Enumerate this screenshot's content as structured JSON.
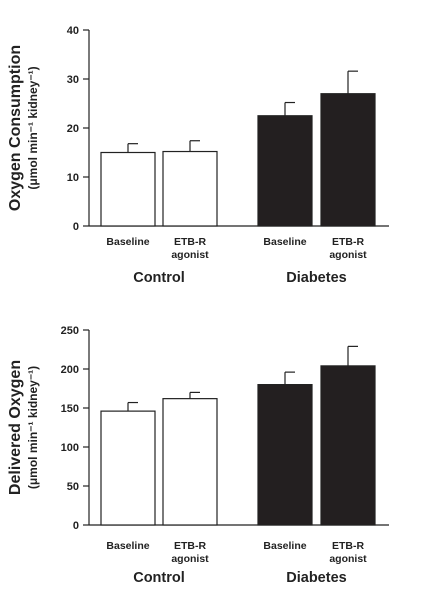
{
  "chart_data": [
    {
      "type": "bar",
      "groups": [
        {
          "name": "Control",
          "categories": [
            [
              "Baseline"
            ],
            [
              "ETB-R",
              "agonist"
            ]
          ]
        },
        {
          "name": "Diabetes",
          "categories": [
            [
              "Baseline"
            ],
            [
              "ETB-R",
              "agonist"
            ]
          ]
        }
      ],
      "categories": [
        "Control Baseline",
        "Control ETB-R agonist",
        "Diabetes Baseline",
        "Diabetes ETB-R agonist"
      ],
      "values": [
        15,
        15.2,
        22.5,
        27
      ],
      "errors": [
        1.8,
        2.2,
        2.7,
        4.6
      ],
      "fills": [
        "#ffffff",
        "#ffffff",
        "#231f20",
        "#231f20"
      ],
      "ylabel": "Oxygen Consumption",
      "ylabel2": "(μmol min⁻¹ kidney⁻¹)",
      "ylim": [
        0,
        40
      ],
      "yticks": [
        0,
        10,
        20,
        30,
        40
      ]
    },
    {
      "type": "bar",
      "groups": [
        {
          "name": "Control",
          "categories": [
            [
              "Baseline"
            ],
            [
              "ETB-R",
              "agonist"
            ]
          ]
        },
        {
          "name": "Diabetes",
          "categories": [
            [
              "Baseline"
            ],
            [
              "ETB-R",
              "agonist"
            ]
          ]
        }
      ],
      "categories": [
        "Control Baseline",
        "Control ETB-R agonist",
        "Diabetes Baseline",
        "Diabetes ETB-R agonist"
      ],
      "values": [
        146,
        162,
        180,
        204
      ],
      "errors": [
        11,
        8,
        16,
        25
      ],
      "fills": [
        "#ffffff",
        "#ffffff",
        "#231f20",
        "#231f20"
      ],
      "ylabel": "Delivered Oxygen",
      "ylabel2": "(μmol min⁻¹ kidney⁻¹)",
      "ylim": [
        0,
        250
      ],
      "yticks": [
        0,
        50,
        100,
        150,
        200,
        250
      ]
    }
  ],
  "colors": {
    "axis": "#222222",
    "filled_bar": "#231f20",
    "open_bar": "#ffffff"
  }
}
